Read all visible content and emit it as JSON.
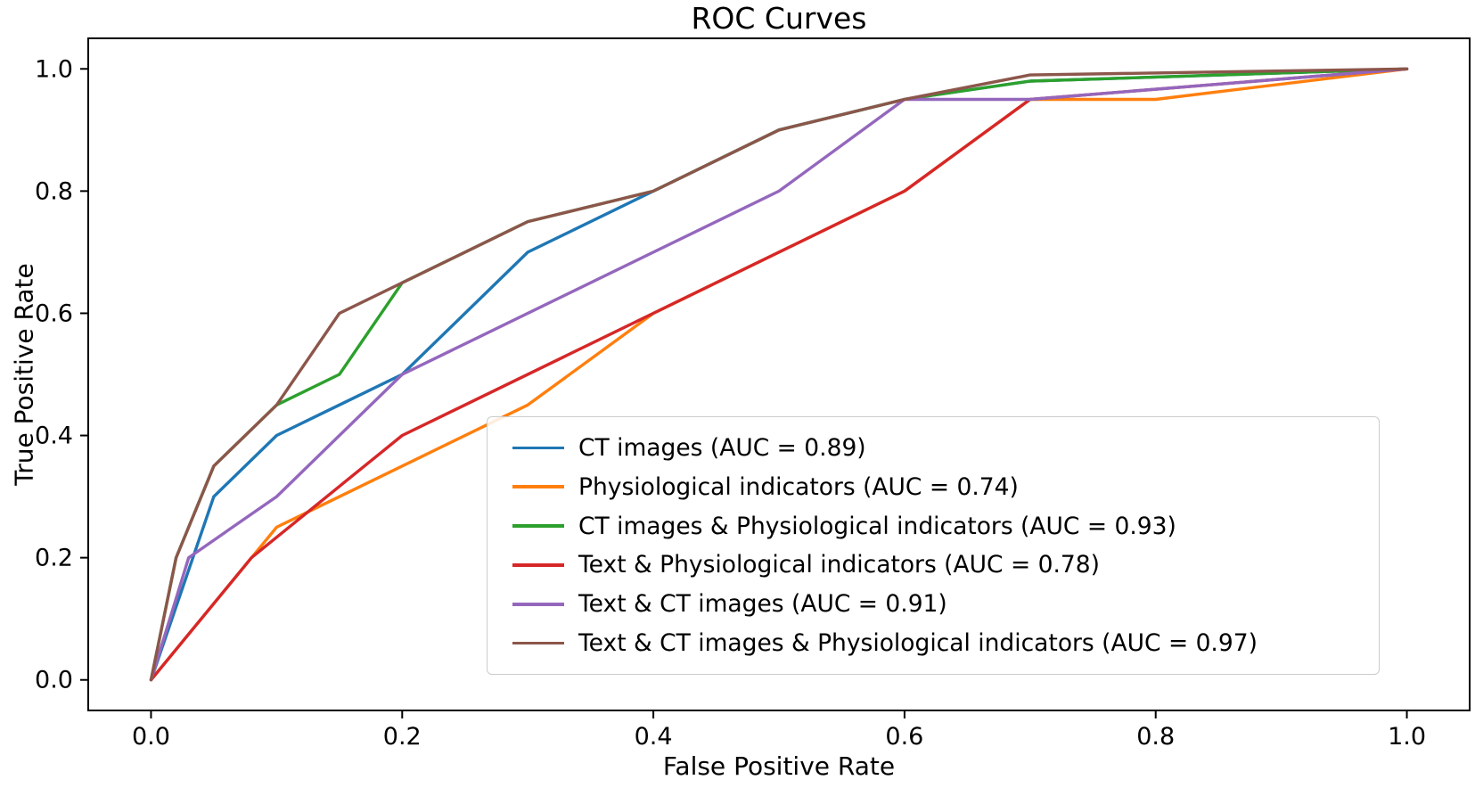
{
  "chart_data": {
    "type": "line",
    "title": "ROC Curves",
    "xlabel": "False Positive Rate",
    "ylabel": "True Positive Rate",
    "xlim": [
      -0.05,
      1.05
    ],
    "ylim": [
      -0.05,
      1.05
    ],
    "grid": false,
    "legend_position": "inside lower-right",
    "x_tick_values": [
      0.0,
      0.2,
      0.4,
      0.6,
      0.8,
      1.0
    ],
    "x_tick_labels": [
      "0.0",
      "0.2",
      "0.4",
      "0.6",
      "0.8",
      "1.0"
    ],
    "y_tick_values": [
      0.0,
      0.2,
      0.4,
      0.6,
      0.8,
      1.0
    ],
    "y_tick_labels": [
      "0.0",
      "0.2",
      "0.4",
      "0.6",
      "0.8",
      "1.0"
    ],
    "series": [
      {
        "id": "ct-images",
        "label": "CT images (AUC = 0.89)",
        "auc": 0.89,
        "color": "#1f77b4",
        "points": [
          [
            0,
            0
          ],
          [
            0.05,
            0.3
          ],
          [
            0.1,
            0.4
          ],
          [
            0.2,
            0.5
          ],
          [
            0.3,
            0.7
          ],
          [
            0.4,
            0.8
          ],
          [
            0.5,
            0.9
          ],
          [
            0.6,
            0.95
          ],
          [
            0.7,
            0.98
          ],
          [
            1,
            1
          ]
        ]
      },
      {
        "id": "physiological-indicators",
        "label": "Physiological indicators (AUC = 0.74)",
        "auc": 0.74,
        "color": "#ff7f0e",
        "points": [
          [
            0,
            0
          ],
          [
            0.1,
            0.25
          ],
          [
            0.3,
            0.45
          ],
          [
            0.4,
            0.6
          ],
          [
            0.6,
            0.8
          ],
          [
            0.7,
            0.95
          ],
          [
            0.8,
            0.95
          ],
          [
            1,
            1
          ]
        ]
      },
      {
        "id": "ct-and-physiological",
        "label": "CT images & Physiological indicators (AUC = 0.93)",
        "auc": 0.93,
        "color": "#2ca02c",
        "points": [
          [
            0,
            0
          ],
          [
            0.02,
            0.2
          ],
          [
            0.05,
            0.35
          ],
          [
            0.1,
            0.45
          ],
          [
            0.15,
            0.5
          ],
          [
            0.2,
            0.65
          ],
          [
            0.3,
            0.75
          ],
          [
            0.4,
            0.8
          ],
          [
            0.5,
            0.9
          ],
          [
            0.6,
            0.95
          ],
          [
            0.7,
            0.98
          ],
          [
            1,
            1
          ]
        ]
      },
      {
        "id": "text-and-physiological",
        "label": "Text & Physiological indicators (AUC = 0.78)",
        "auc": 0.78,
        "color": "#d62728",
        "points": [
          [
            0,
            0
          ],
          [
            0.08,
            0.2
          ],
          [
            0.2,
            0.4
          ],
          [
            0.6,
            0.8
          ],
          [
            0.7,
            0.95
          ],
          [
            1,
            1
          ]
        ]
      },
      {
        "id": "text-and-ct",
        "label": "Text & CT images (AUC = 0.91)",
        "auc": 0.91,
        "color": "#9467bd",
        "points": [
          [
            0,
            0
          ],
          [
            0.03,
            0.2
          ],
          [
            0.1,
            0.3
          ],
          [
            0.2,
            0.5
          ],
          [
            0.5,
            0.8
          ],
          [
            0.6,
            0.95
          ],
          [
            0.7,
            0.95
          ],
          [
            1,
            1
          ]
        ]
      },
      {
        "id": "text-ct-physiological",
        "label": "Text & CT images & Physiological indicators (AUC = 0.97)",
        "auc": 0.97,
        "color": "#8c564b",
        "points": [
          [
            0,
            0
          ],
          [
            0.02,
            0.2
          ],
          [
            0.05,
            0.35
          ],
          [
            0.1,
            0.45
          ],
          [
            0.15,
            0.6
          ],
          [
            0.3,
            0.75
          ],
          [
            0.4,
            0.8
          ],
          [
            0.5,
            0.9
          ],
          [
            0.6,
            0.95
          ],
          [
            0.7,
            0.99
          ],
          [
            1,
            1
          ]
        ]
      }
    ]
  }
}
